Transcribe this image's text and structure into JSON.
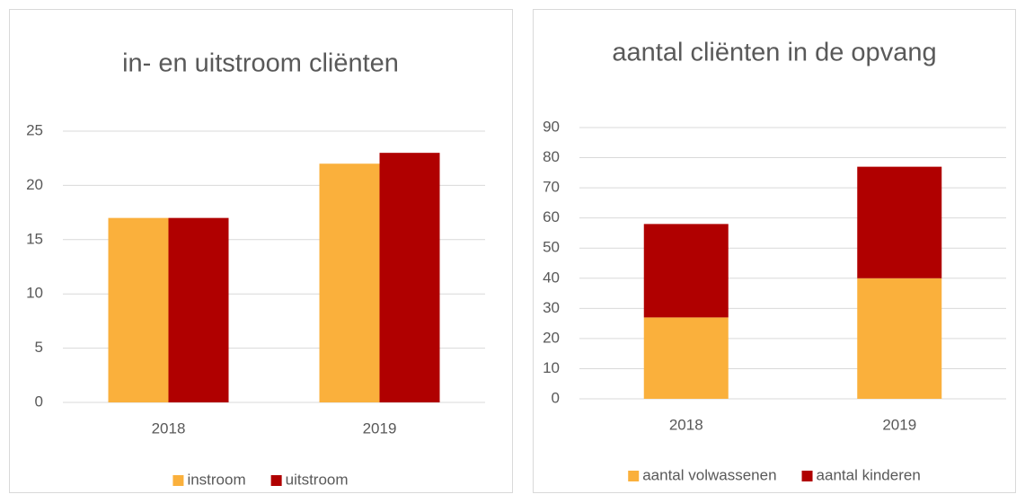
{
  "chart_data": [
    {
      "type": "bar",
      "title": "in- en uitstroom cliënten",
      "categories": [
        "2018",
        "2019"
      ],
      "series": [
        {
          "name": "instroom",
          "color": "#fab03c",
          "values": [
            17,
            22
          ]
        },
        {
          "name": "uitstroom",
          "color": "#b00000",
          "values": [
            17,
            23
          ]
        }
      ],
      "ylim": [
        0,
        25
      ],
      "yticks": [
        0,
        5,
        10,
        15,
        20,
        25
      ],
      "grid": true,
      "legend": "bottom"
    },
    {
      "type": "stacked_bar",
      "title": "aantal cliënten in de opvang",
      "categories": [
        "2018",
        "2019"
      ],
      "series": [
        {
          "name": "aantal volwassenen",
          "color": "#fab03c",
          "values": [
            27,
            40
          ]
        },
        {
          "name": "aantal kinderen",
          "color": "#b00000",
          "values": [
            31,
            37
          ]
        }
      ],
      "ylim": [
        0,
        90
      ],
      "yticks": [
        0,
        10,
        20,
        30,
        40,
        50,
        60,
        70,
        80,
        90
      ],
      "grid": true,
      "legend": "bottom"
    }
  ]
}
